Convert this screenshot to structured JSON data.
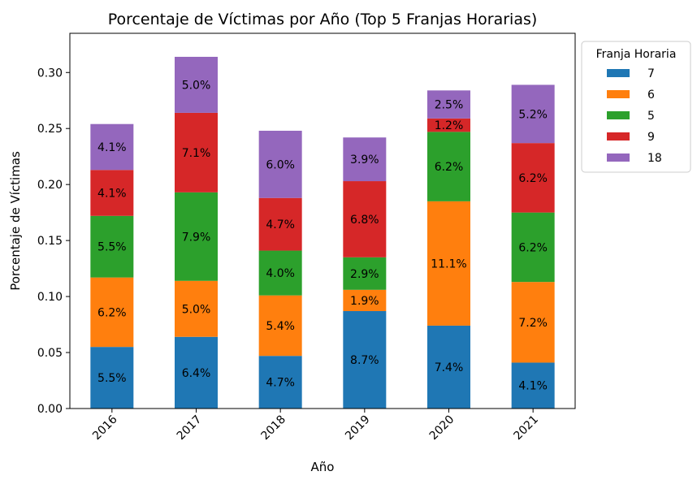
{
  "chart_data": {
    "type": "bar",
    "stacked": true,
    "title": "Porcentaje de Víctimas por Año (Top 5 Franjas Horarias)",
    "xlabel": "Año",
    "ylabel": "Porcentaje de Víctimas",
    "ylim": [
      0,
      0.335
    ],
    "yticks": [
      "0.00",
      "0.05",
      "0.10",
      "0.15",
      "0.20",
      "0.25",
      "0.30"
    ],
    "categories": [
      "2016",
      "2017",
      "2018",
      "2019",
      "2020",
      "2021"
    ],
    "legend": {
      "title": "Franja Horaria",
      "placement": "outside-top-right"
    },
    "grid": false,
    "series": [
      {
        "name": "7",
        "color": "#1f77b4",
        "values": [
          0.055,
          0.064,
          0.047,
          0.087,
          0.074,
          0.041
        ],
        "labels": [
          "5.5%",
          "6.4%",
          "4.7%",
          "8.7%",
          "7.4%",
          "4.1%"
        ]
      },
      {
        "name": "6",
        "color": "#ff7f0e",
        "values": [
          0.062,
          0.05,
          0.054,
          0.019,
          0.111,
          0.072
        ],
        "labels": [
          "6.2%",
          "5.0%",
          "5.4%",
          "1.9%",
          "11.1%",
          "7.2%"
        ]
      },
      {
        "name": "5",
        "color": "#2ca02c",
        "values": [
          0.055,
          0.079,
          0.04,
          0.029,
          0.062,
          0.062
        ],
        "labels": [
          "5.5%",
          "7.9%",
          "4.0%",
          "2.9%",
          "6.2%",
          "6.2%"
        ]
      },
      {
        "name": "9",
        "color": "#d62728",
        "values": [
          0.041,
          0.071,
          0.047,
          0.068,
          0.012,
          0.062
        ],
        "labels": [
          "4.1%",
          "7.1%",
          "4.7%",
          "6.8%",
          "1.2%",
          "6.2%"
        ]
      },
      {
        "name": "18",
        "color": "#9467bd",
        "values": [
          0.041,
          0.05,
          0.06,
          0.039,
          0.025,
          0.052
        ],
        "labels": [
          "4.1%",
          "5.0%",
          "6.0%",
          "3.9%",
          "2.5%",
          "5.2%"
        ]
      }
    ]
  }
}
